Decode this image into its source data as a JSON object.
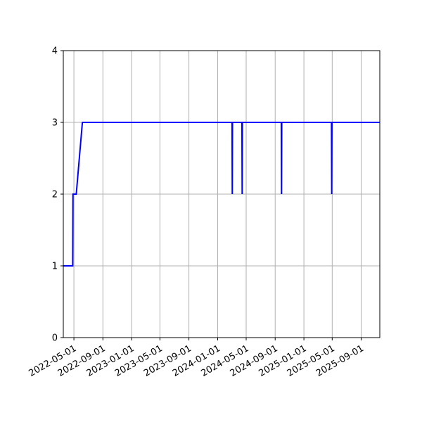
{
  "chart_data": {
    "type": "line",
    "title": "",
    "xlabel": "",
    "ylabel": "",
    "xlim": [
      "2022-03-17",
      "2025-11-19"
    ],
    "ylim": [
      0,
      4
    ],
    "grid": true,
    "y_ticks": [
      0,
      1,
      2,
      3,
      4
    ],
    "y_tick_labels": [
      "0",
      "1",
      "2",
      "3",
      "4"
    ],
    "x_ticks": [
      "2022-05-01",
      "2022-09-01",
      "2023-01-01",
      "2023-05-01",
      "2023-09-01",
      "2024-01-01",
      "2024-05-01",
      "2024-09-01",
      "2025-01-01",
      "2025-05-01",
      "2025-09-01"
    ],
    "x_tick_labels": [
      "2022-05-01",
      "2022-09-01",
      "2023-01-01",
      "2023-05-01",
      "2023-09-01",
      "2024-01-01",
      "2024-05-01",
      "2024-09-01",
      "2025-01-01",
      "2025-05-01",
      "2025-09-01"
    ],
    "series": [
      {
        "color": "#0000ff",
        "points": [
          {
            "x": "2022-03-17",
            "y": 1
          },
          {
            "x": "2022-04-26",
            "y": 1
          },
          {
            "x": "2022-04-27",
            "y": 2
          },
          {
            "x": "2022-05-11",
            "y": 2
          },
          {
            "x": "2022-06-06",
            "y": 3
          },
          {
            "x": "2024-03-02",
            "y": 3
          },
          {
            "x": "2024-03-03",
            "y": 2
          },
          {
            "x": "2024-03-04",
            "y": 3
          },
          {
            "x": "2024-04-13",
            "y": 3
          },
          {
            "x": "2024-04-14",
            "y": 2
          },
          {
            "x": "2024-04-15",
            "y": 3
          },
          {
            "x": "2024-09-27",
            "y": 3
          },
          {
            "x": "2024-09-28",
            "y": 2
          },
          {
            "x": "2024-09-29",
            "y": 3
          },
          {
            "x": "2025-04-28",
            "y": 3
          },
          {
            "x": "2025-04-29",
            "y": 2
          },
          {
            "x": "2025-04-30",
            "y": 3
          },
          {
            "x": "2025-11-19",
            "y": 3
          }
        ]
      }
    ]
  }
}
